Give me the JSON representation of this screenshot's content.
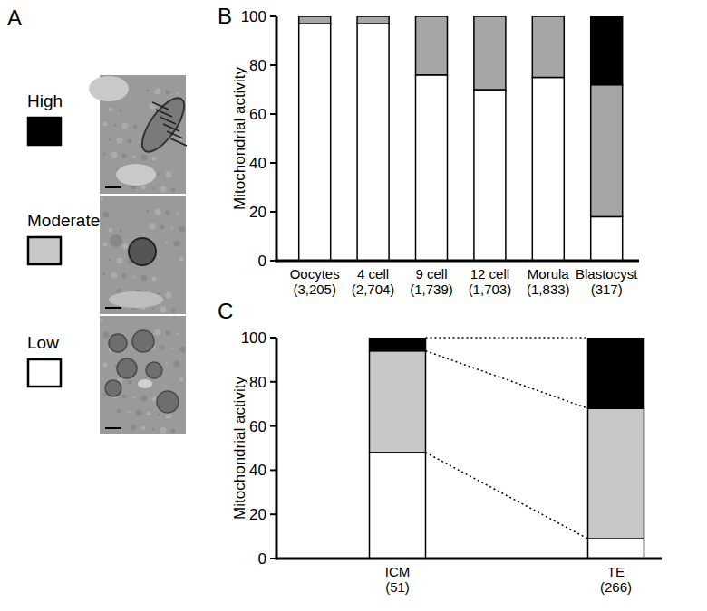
{
  "legend_panel": {
    "label": "A"
  },
  "chart_data": [
    {
      "type": "bar",
      "title": "B",
      "y_label": "Mitochondrial activity",
      "categories": [
        "Oocytes\n(3,205)",
        "4 cell\n(2,704)",
        "9 cell\n(1,739)",
        "12 cell\n(1,703)",
        "Morula\n(1,833)",
        "Blastocyst\n(317)"
      ],
      "series": [
        {
          "name": "Low",
          "color": "#ffffff",
          "values": [
            97,
            97,
            76,
            70,
            75,
            18
          ]
        },
        {
          "name": "Moderate",
          "color": "#a6a6a6",
          "values": [
            3,
            3,
            24,
            30,
            25,
            54
          ]
        },
        {
          "name": "High",
          "color": "#000000",
          "values": [
            0,
            0,
            0,
            0,
            0,
            28
          ]
        }
      ],
      "ylim": [
        0,
        100
      ],
      "yticks": [
        0,
        20,
        40,
        60,
        80,
        100
      ],
      "stacked": true,
      "grid": false
    },
    {
      "type": "bar",
      "title": "C",
      "y_label": "Mitochondrial activity",
      "categories": [
        "ICM\n(51)",
        "TE\n(266)"
      ],
      "series": [
        {
          "name": "Low",
          "color": "#ffffff",
          "values": [
            48,
            9
          ]
        },
        {
          "name": "Moderate",
          "color": "#c8c8c8",
          "values": [
            46,
            59
          ]
        },
        {
          "name": "High",
          "color": "#000000",
          "values": [
            6,
            32
          ]
        }
      ],
      "ylim": [
        0,
        100
      ],
      "yticks": [
        0,
        20,
        40,
        60,
        80,
        100
      ],
      "stacked": true,
      "grid": false
    }
  ]
}
